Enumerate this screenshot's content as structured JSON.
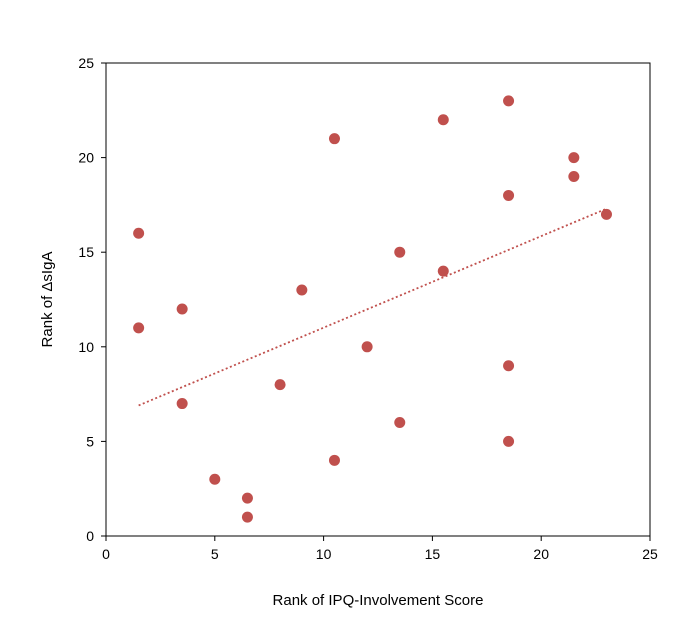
{
  "chart_data": {
    "type": "scatter",
    "title": "",
    "xlabel": "Rank of IPQ-Involvement  Score",
    "ylabel": "Rank of ΔsIgA",
    "xlim": [
      0,
      25
    ],
    "ylim": [
      0,
      25
    ],
    "xticks": [
      0,
      5,
      10,
      15,
      20,
      25
    ],
    "yticks": [
      0,
      5,
      10,
      15,
      20,
      25
    ],
    "grid": false,
    "legend": "none",
    "series": [
      {
        "color": "#c0504d",
        "points": [
          {
            "x": 1.5,
            "y": 16
          },
          {
            "x": 1.5,
            "y": 11
          },
          {
            "x": 3.5,
            "y": 12
          },
          {
            "x": 3.5,
            "y": 7
          },
          {
            "x": 5,
            "y": 3
          },
          {
            "x": 6.5,
            "y": 2
          },
          {
            "x": 6.5,
            "y": 1
          },
          {
            "x": 8,
            "y": 8
          },
          {
            "x": 9,
            "y": 13
          },
          {
            "x": 10.5,
            "y": 21
          },
          {
            "x": 10.5,
            "y": 4
          },
          {
            "x": 12,
            "y": 10
          },
          {
            "x": 13.5,
            "y": 15
          },
          {
            "x": 13.5,
            "y": 6
          },
          {
            "x": 15.5,
            "y": 22
          },
          {
            "x": 15.5,
            "y": 14
          },
          {
            "x": 18.5,
            "y": 23
          },
          {
            "x": 18.5,
            "y": 18
          },
          {
            "x": 18.5,
            "y": 9
          },
          {
            "x": 18.5,
            "y": 5
          },
          {
            "x": 21.5,
            "y": 20
          },
          {
            "x": 21.5,
            "y": 19
          },
          {
            "x": 23,
            "y": 17
          }
        ]
      }
    ],
    "trendline": {
      "type": "linear",
      "style": "dotted",
      "color": "#c0504d",
      "points": [
        {
          "x": 1.5,
          "y": 6.9
        },
        {
          "x": 23,
          "y": 17.3
        }
      ]
    }
  }
}
